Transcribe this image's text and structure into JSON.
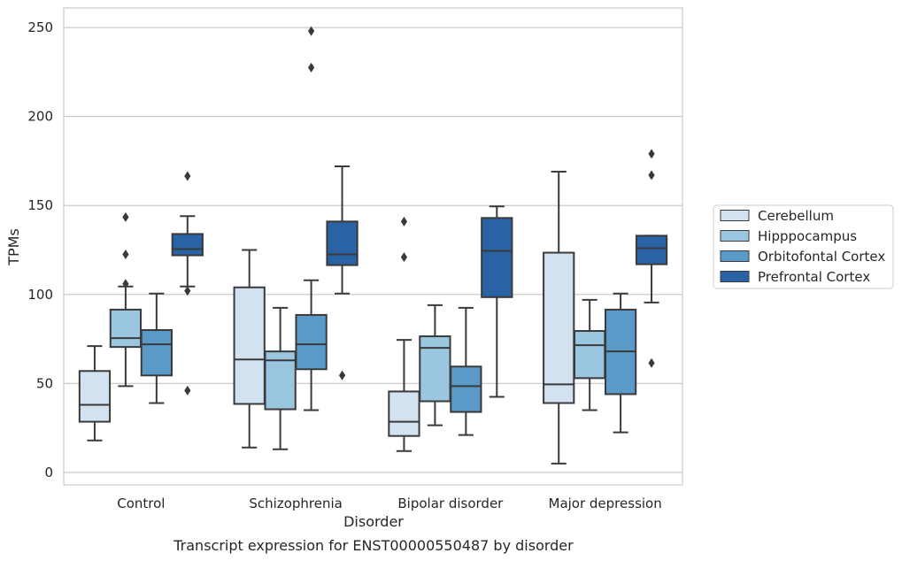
{
  "chart_data": {
    "type": "box",
    "caption": "Transcript expression for ENST00000550487 by disorder",
    "xlabel": "Disorder",
    "ylabel": "TPMs",
    "ylim": [
      -7,
      261
    ],
    "yticks": [
      0,
      50,
      100,
      150,
      200,
      250
    ],
    "grid": "horizontal",
    "legend_position": "right",
    "categories": [
      "Control",
      "Schizophrenia",
      "Bipolar disorder",
      "Major depression"
    ],
    "series": [
      {
        "name": "Cerebellum",
        "color": "#d2e2f1",
        "boxes": [
          {
            "whisker_low": 18,
            "q1": 28.5,
            "median": 38,
            "q3": 57,
            "whisker_high": 71,
            "outliers": []
          },
          {
            "whisker_low": 14,
            "q1": 38.5,
            "median": 63.5,
            "q3": 104,
            "whisker_high": 125,
            "outliers": []
          },
          {
            "whisker_low": 12,
            "q1": 20.5,
            "median": 28.5,
            "q3": 45.5,
            "whisker_high": 74.5,
            "outliers": [
              121,
              141
            ]
          },
          {
            "whisker_low": 5,
            "q1": 39,
            "median": 49.5,
            "q3": 123.5,
            "whisker_high": 169,
            "outliers": []
          }
        ]
      },
      {
        "name": "Hipppocampus",
        "color": "#9ac7df",
        "boxes": [
          {
            "whisker_low": 48.5,
            "q1": 70.5,
            "median": 75.5,
            "q3": 91.5,
            "whisker_high": 104.5,
            "outliers": [
              106,
              122.5,
              143.5
            ]
          },
          {
            "whisker_low": 13,
            "q1": 35.5,
            "median": 63,
            "q3": 68,
            "whisker_high": 92.5,
            "outliers": []
          },
          {
            "whisker_low": 26.5,
            "q1": 40,
            "median": 70,
            "q3": 76.5,
            "whisker_high": 94,
            "outliers": []
          },
          {
            "whisker_low": 35,
            "q1": 53,
            "median": 71.5,
            "q3": 79.5,
            "whisker_high": 97,
            "outliers": []
          }
        ]
      },
      {
        "name": "Orbitofontal Cortex",
        "color": "#5a9ac8",
        "boxes": [
          {
            "whisker_low": 39,
            "q1": 54.5,
            "median": 72,
            "q3": 80,
            "whisker_high": 100.5,
            "outliers": []
          },
          {
            "whisker_low": 35,
            "q1": 58,
            "median": 72,
            "q3": 88.5,
            "whisker_high": 108,
            "outliers": [
              248,
              227.5
            ]
          },
          {
            "whisker_low": 21,
            "q1": 34,
            "median": 48.5,
            "q3": 59.5,
            "whisker_high": 92.5,
            "outliers": []
          },
          {
            "whisker_low": 22.5,
            "q1": 44,
            "median": 68,
            "q3": 91.5,
            "whisker_high": 100.5,
            "outliers": []
          }
        ]
      },
      {
        "name": "Prefrontal Cortex",
        "color": "#2a62a6",
        "boxes": [
          {
            "whisker_low": 104.5,
            "q1": 122,
            "median": 125.5,
            "q3": 134,
            "whisker_high": 144,
            "outliers": [
              46,
              102,
              166.5
            ]
          },
          {
            "whisker_low": 100.5,
            "q1": 116.5,
            "median": 122.5,
            "q3": 141,
            "whisker_high": 172,
            "outliers": [
              54.5
            ]
          },
          {
            "whisker_low": 42.5,
            "q1": 98.5,
            "median": 124.5,
            "q3": 143,
            "whisker_high": 149.5,
            "outliers": []
          },
          {
            "whisker_low": 95.5,
            "q1": 117,
            "median": 126,
            "q3": 133,
            "whisker_high": 133,
            "outliers": [
              61.5,
              167,
              179
            ]
          }
        ]
      }
    ]
  }
}
